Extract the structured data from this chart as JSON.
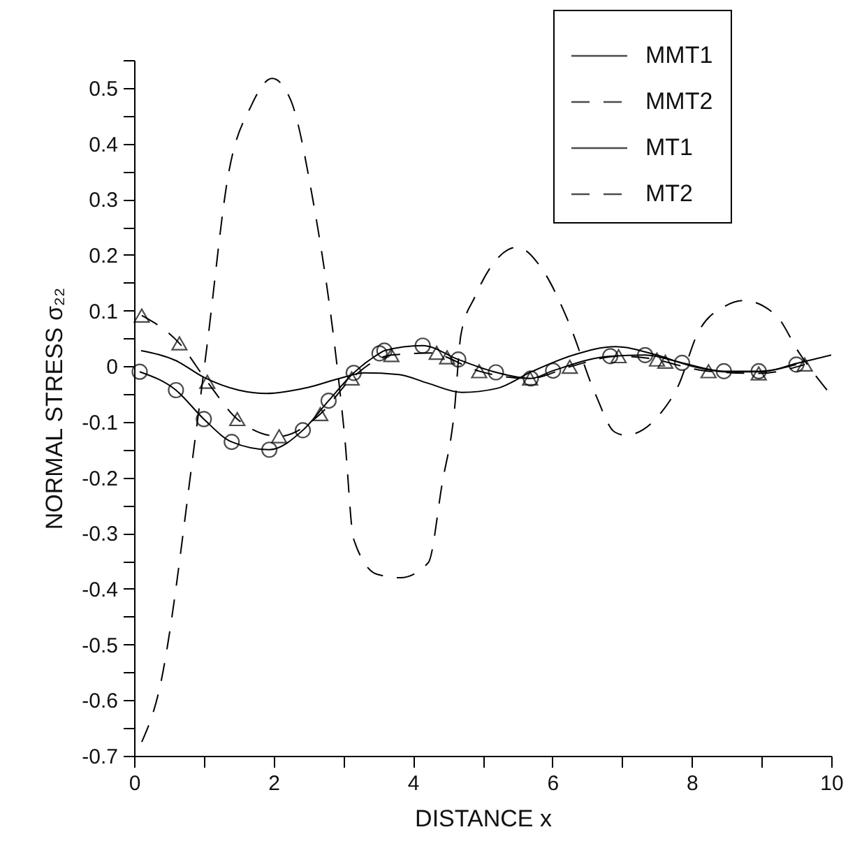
{
  "chart_data": {
    "type": "line",
    "xlabel": "DISTANCE  x",
    "ylabel": "NORMAL STRESS σ₂₂",
    "xlim": [
      0,
      10
    ],
    "ylim": [
      -0.7,
      0.55
    ],
    "xticks": [
      0,
      {
        "value": 1,
        "label": null
      },
      2,
      {
        "value": 3,
        "label": null
      },
      4,
      {
        "value": 5,
        "label": null
      },
      6,
      {
        "value": 7,
        "label": null
      },
      8,
      {
        "value": 9,
        "label": null
      },
      10
    ],
    "yticks": [
      -0.7,
      {
        "value": -0.65,
        "label": null
      },
      -0.6,
      {
        "value": -0.55,
        "label": null
      },
      -0.5,
      {
        "value": -0.45,
        "label": null
      },
      -0.4,
      {
        "value": -0.35,
        "label": null
      },
      -0.3,
      {
        "value": -0.25,
        "label": null
      },
      -0.2,
      {
        "value": -0.15,
        "label": null
      },
      -0.1,
      {
        "value": -0.05,
        "label": null
      },
      0,
      {
        "value": 0.05,
        "label": null
      },
      0.1,
      {
        "value": 0.15,
        "label": null
      },
      0.2,
      {
        "value": 0.25,
        "label": null
      },
      0.3,
      {
        "value": 0.35,
        "label": null
      },
      0.4,
      {
        "value": 0.45,
        "label": null
      },
      0.5,
      {
        "value": 0.55,
        "label": null
      }
    ],
    "legend": "top right",
    "series": [
      {
        "name": "MMT1",
        "color": "#000000",
        "line_style": "solid",
        "marker": "none",
        "x": [
          0.1,
          0.6,
          1,
          1.5,
          1.9,
          2.5,
          3,
          3.3,
          3.8,
          4.2,
          4.7,
          5.2,
          5.7,
          6.3,
          6.9,
          7.5,
          8,
          8.5,
          9,
          9.5,
          10
        ],
        "values": [
          0.028,
          0.01,
          -0.02,
          -0.043,
          -0.049,
          -0.038,
          -0.02,
          -0.012,
          -0.015,
          -0.03,
          -0.047,
          -0.04,
          -0.01,
          0.02,
          0.035,
          0.02,
          0,
          -0.01,
          -0.01,
          0.005,
          0.02
        ]
      },
      {
        "name": "MMT2",
        "color": "#000000",
        "line_style": "dashed",
        "marker": "none",
        "x": [
          0.11,
          0.35,
          0.88,
          1.05,
          1.35,
          1.68,
          1.98,
          2.25,
          2.55,
          2.92,
          3.02,
          3.15,
          3.49,
          3.82,
          4.22,
          4.42,
          4.59,
          4.69,
          4.89,
          5.36,
          5.49,
          5.85,
          6.22,
          6.62,
          6.89,
          7.05,
          7.55,
          7.81,
          8.08,
          8.48,
          8.74,
          9.21,
          9.54,
          9.94
        ],
        "values": [
          -0.675,
          -0.587,
          -0.126,
          0.041,
          0.343,
          0.468,
          0.517,
          0.477,
          0.309,
          -0.009,
          -0.126,
          -0.311,
          -0.374,
          -0.38,
          -0.353,
          -0.21,
          -0.085,
          0.058,
          0.125,
          0.209,
          0.214,
          0.175,
          0.083,
          -0.051,
          -0.118,
          -0.124,
          -0.085,
          -0.034,
          0.058,
          0.108,
          0.118,
          0.091,
          0.024,
          -0.043
        ]
      },
      {
        "name": "MT1",
        "color": "#000000",
        "line_style": "solid",
        "marker": "circle",
        "x": [
          0.08,
          0.6,
          1,
          1.4,
          1.94,
          2.42,
          2.79,
          3.15,
          3.52,
          3.59,
          4.14,
          4.65,
          5.19,
          5.69,
          6.01,
          6.83,
          7.33,
          7.86,
          8.46,
          8.96,
          9.5
        ],
        "values": [
          -0.01,
          -0.043,
          -0.095,
          -0.136,
          -0.15,
          -0.115,
          -0.062,
          -0.012,
          0.023,
          0.028,
          0.037,
          0.012,
          -0.011,
          -0.022,
          -0.008,
          0.018,
          0.02,
          0.006,
          -0.009,
          -0.009,
          0.003
        ]
      },
      {
        "name": "MT2",
        "color": "#000000",
        "line_style": "dashed",
        "marker": "triangle",
        "x": [
          0.11,
          0.65,
          1.05,
          1.48,
          2.08,
          2.67,
          3.12,
          3.69,
          4.34,
          4.49,
          4.95,
          5.68,
          6.25,
          6.95,
          7.5,
          7.62,
          8.24,
          8.96,
          9.62
        ],
        "values": [
          0.091,
          0.041,
          -0.028,
          -0.095,
          -0.126,
          -0.086,
          -0.022,
          0.02,
          0.024,
          0.016,
          -0.009,
          -0.022,
          -0.001,
          0.018,
          0.012,
          0.008,
          -0.009,
          -0.013,
          0.003
        ]
      }
    ]
  }
}
